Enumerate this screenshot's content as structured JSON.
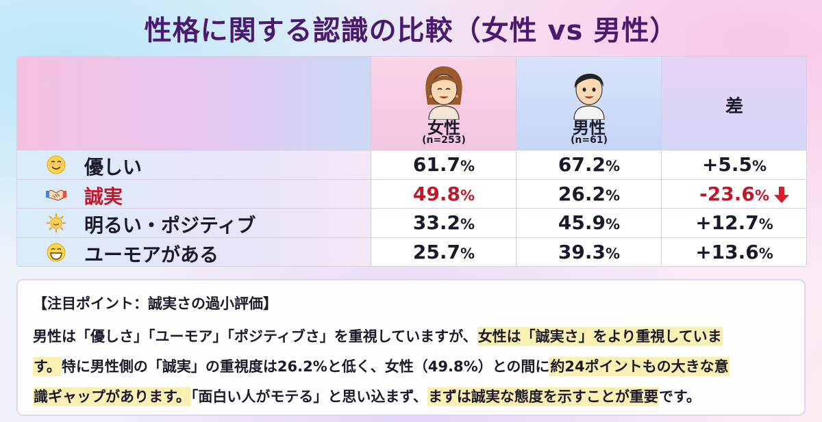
{
  "title": "性格に関する認識の比較（女性 vs 男性）",
  "chart_data": {
    "type": "table",
    "columns": [
      {
        "label": "女性",
        "n": "(n=253)"
      },
      {
        "label": "男性",
        "n": "(n=61)"
      },
      {
        "label": "差"
      }
    ],
    "unit": "%",
    "rows": [
      {
        "label": "優しい",
        "icon": "smiling-face-icon",
        "female": "61.7",
        "male": "67.2",
        "diff": "+5.5",
        "highlight": false
      },
      {
        "label": "誠実",
        "icon": "handshake-icon",
        "female": "49.8",
        "male": "26.2",
        "diff": "-23.6",
        "highlight": true,
        "diff_icon": "down-arrow-icon"
      },
      {
        "label": "明るい・ポジティブ",
        "icon": "sun-icon",
        "female": "33.2",
        "male": "45.9",
        "diff": "+12.7",
        "highlight": false
      },
      {
        "label": "ユーモアがある",
        "icon": "grinning-face-icon",
        "female": "25.7",
        "male": "39.3",
        "diff": "+13.6",
        "highlight": false
      }
    ],
    "colors": {
      "highlight": "#c0182a",
      "title": "#4a1a6e",
      "female_header": "#f4c6e0",
      "male_header": "#c6d6f6"
    }
  },
  "note": {
    "title": "【注目ポイント：誠実さの過小評価】",
    "line1_a": "男性は「優しさ」「ユーモア」「ポジティブさ」を重視していますが、",
    "line1_hl": "女性は「誠実さ」をより重視していま",
    "line2_hl": "す。",
    "line2_a": "特に男性側の「誠実」の重視度は26.2%と低く、女性（49.8%）との間に",
    "line2_hl2": "約24ポイントもの大きな意",
    "line3_hl": "識ギャップがあります。",
    "line3_a": "「面白い人がモテる」と思い込まず、",
    "line3_hl2": "まずは誠実な態度を示すことが重要",
    "line3_b": "です。"
  }
}
